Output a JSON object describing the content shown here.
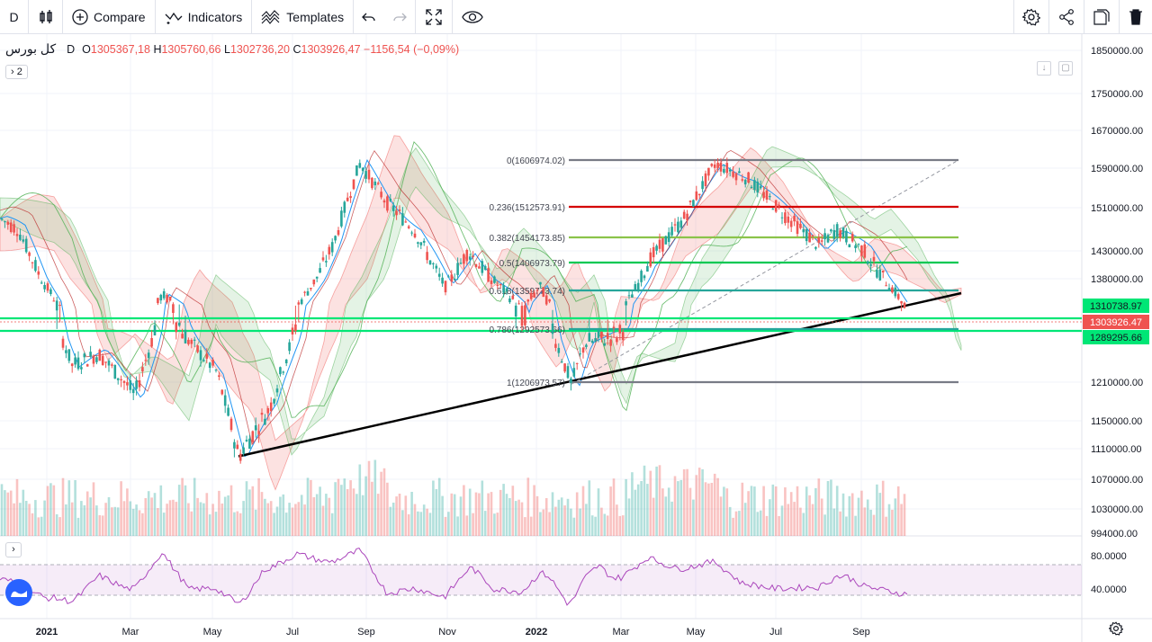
{
  "toolbar": {
    "interval": "D",
    "compare_label": "Compare",
    "indicators_label": "Indicators",
    "templates_label": "Templates"
  },
  "legend": {
    "symbol": "کل بورس",
    "timeframe": "D",
    "open_label": "O",
    "open": "1305367,18",
    "high_label": "H",
    "high": "1305760,66",
    "low_label": "L",
    "low": "1302736,20",
    "close_label": "C",
    "close": "1303926,47",
    "change": "−1156,54 (−0,09%)",
    "collapse_count": "2"
  },
  "colors": {
    "up": "#26a69a",
    "down": "#ef5350",
    "fib_red": "#d50000",
    "fib_lime": "#8bc34a",
    "fib_green": "#00c853",
    "fib_teal": "#26a69a",
    "fib_gray": "#787b86",
    "hline_green": "#00e676",
    "rsi": "#ab47bc"
  },
  "chart_data": {
    "type": "candlestick",
    "price_axis_labels": [
      "1850000.00",
      "1750000.00",
      "1670000.00",
      "1590000.00",
      "1510000.00",
      "1430000.00",
      "1380000.00",
      "1310738.97",
      "1303926.47",
      "1289295.66",
      "1210000.00",
      "1150000.00",
      "1110000.00",
      "1070000.00",
      "1030000.00",
      "994000.00"
    ],
    "time_axis_labels": [
      "2021",
      "Mar",
      "May",
      "Jul",
      "Sep",
      "Nov",
      "2022",
      "Mar",
      "May",
      "Jul",
      "Sep"
    ],
    "fib_levels": [
      {
        "label": "0(1606974.02)",
        "color": "#787b86"
      },
      {
        "label": "0.236(1512573.91)",
        "color": "#d50000"
      },
      {
        "label": "0.382(1454173.85)",
        "color": "#8bc34a"
      },
      {
        "label": "0.5(1406973.79)",
        "color": "#00c853"
      },
      {
        "label": "0.618(1359773.74)",
        "color": "#26a69a"
      },
      {
        "label": "0.786(1292573.66)",
        "color": "#26a69a"
      },
      {
        "label": "1(1206973.57)",
        "color": "#787b86"
      }
    ],
    "price_tags": [
      {
        "value": "1310738.97",
        "color": "#00e676"
      },
      {
        "value": "1303926.47",
        "color": "#ef5350"
      },
      {
        "value": "1289295.66",
        "color": "#00e676"
      }
    ],
    "rsi_axis_labels": [
      "80.0000",
      "40.0000"
    ]
  }
}
